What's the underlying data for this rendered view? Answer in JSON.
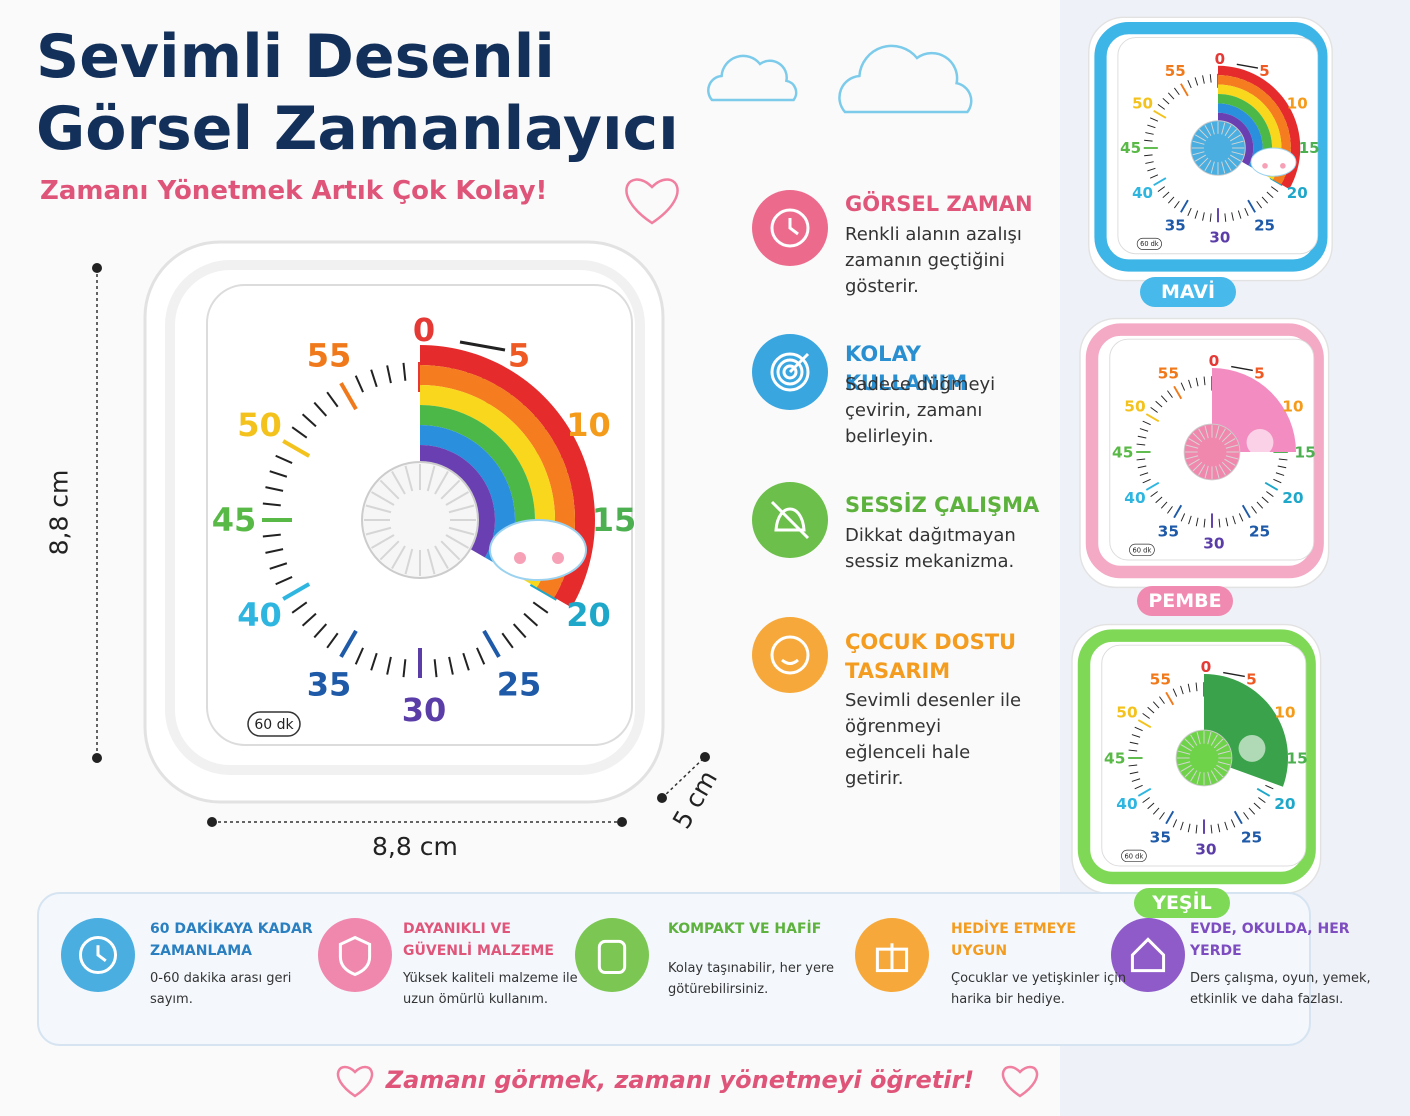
{
  "header": {
    "title": [
      "Sevimli Desenli",
      "Görsel Zamanlayıcı"
    ],
    "subtitle": "Zamanı Yönetmek Artık Çok Kolay!"
  },
  "timer": {
    "dial": [
      "0",
      "5",
      "10",
      "15",
      "20",
      "25",
      "30",
      "35",
      "40",
      "45",
      "50",
      "55"
    ],
    "badge": "60 dk"
  },
  "dimensions": {
    "height": "8,8 cm",
    "width": "8,8 cm",
    "depth": "5 cm"
  },
  "features": [
    {
      "title": "GÖRSEL ZAMAN",
      "text": "Renkli alanın azalışı zamanın geçtiğini gösterir."
    },
    {
      "title": "KOLAY KULLANIM",
      "text": "Sadece düğmeyi çevirin, zamanı belirleyin."
    },
    {
      "title": "SESSİZ ÇALIŞMA",
      "text": "Dikkat dağıtmayan sessiz mekanizma."
    },
    {
      "title": "ÇOCUK DOSTU TASARIM",
      "text": "Sevimli desenler ile öğrenmeyi eğlenceli hale getirir."
    }
  ],
  "variants": [
    "MAVİ",
    "PEMBE",
    "YEŞİL"
  ],
  "highlights": [
    {
      "title": "60 DAKİKAYA KADAR ZAMANLAMA",
      "text": "0-60 dakika arası geri sayım."
    },
    {
      "title": "DAYANIKLI VE GÜVENLİ MALZEME",
      "text": "Yüksek kaliteli malzeme ile uzun ömürlü kullanım."
    },
    {
      "title": "KOMPAKT VE HAFİF",
      "text": "Kolay taşınabilir, her yere götürebilirsiniz."
    },
    {
      "title": "HEDİYE ETMEYE UYGUN",
      "text": "Çocuklar ve yetişkinler için harika bir hediye."
    },
    {
      "title": "EVDE, OKULDA, HER YERDE",
      "text": "Ders çalışma, oyun, yemek, etkinlik ve daha fazlası."
    }
  ],
  "footer": "Zamanı görmek, zamanı yönetmeyi öğretir!"
}
